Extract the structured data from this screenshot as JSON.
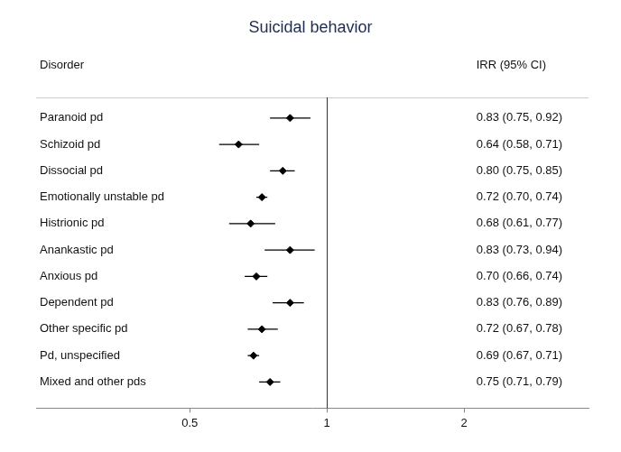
{
  "chart_data": {
    "type": "forest",
    "title": "Suicidal behavior",
    "column_headers": [
      "Disorder",
      "IRR (95% CI)"
    ],
    "categories": [
      "Paranoid pd",
      "Schizoid pd",
      "Dissocial pd",
      "Emotionally unstable pd",
      "Histrionic pd",
      "Anankastic pd",
      "Anxious pd",
      "Dependent pd",
      "Other specific pd",
      "Pd, unspecified",
      "Mixed and other pds"
    ],
    "values": [
      0.83,
      0.64,
      0.8,
      0.72,
      0.68,
      0.83,
      0.7,
      0.83,
      0.72,
      0.69,
      0.75
    ],
    "lower": [
      0.75,
      0.58,
      0.75,
      0.7,
      0.61,
      0.73,
      0.66,
      0.76,
      0.67,
      0.67,
      0.71
    ],
    "upper": [
      0.92,
      0.71,
      0.85,
      0.74,
      0.77,
      0.94,
      0.74,
      0.89,
      0.78,
      0.71,
      0.79
    ],
    "ci_labels": [
      "0.83 (0.75, 0.92)",
      "0.64 (0.58, 0.71)",
      "0.80 (0.75, 0.85)",
      "0.72 (0.70, 0.74)",
      "0.68 (0.61, 0.77)",
      "0.83 (0.73, 0.94)",
      "0.70 (0.66, 0.74)",
      "0.83 (0.76, 0.89)",
      "0.72 (0.67, 0.78)",
      "0.69 (0.67, 0.71)",
      "0.75 (0.71, 0.79)"
    ],
    "xlim": [
      0.23,
      3.75
    ],
    "xticks": [
      0.5,
      1,
      2
    ],
    "log": "x",
    "reference_line": 1,
    "color": "#000000",
    "marker": "diamond",
    "grid": false
  }
}
